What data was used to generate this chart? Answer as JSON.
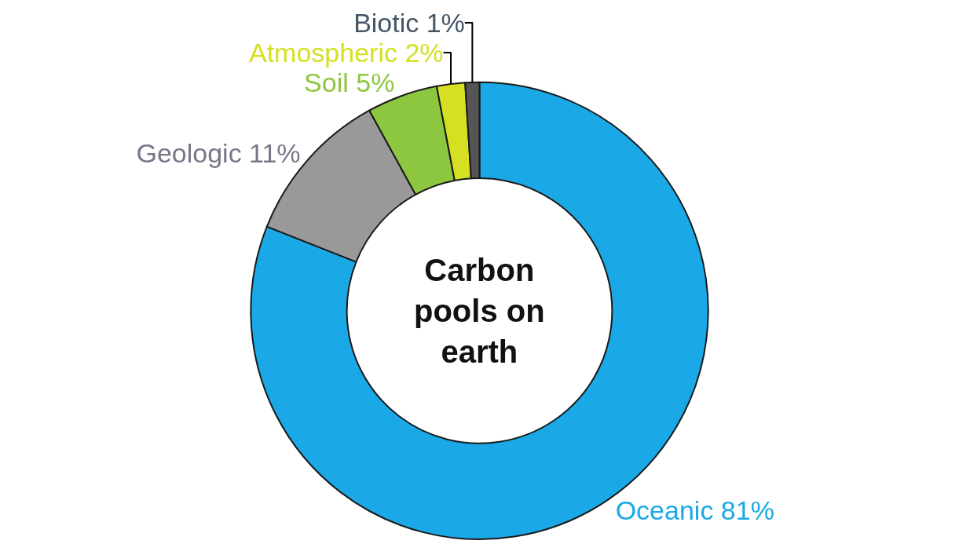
{
  "chart_data": {
    "type": "donut",
    "title": "Carbon pools on earth",
    "categories": [
      "Oceanic",
      "Geologic",
      "Soil",
      "Atmospheric",
      "Biotic"
    ],
    "values": [
      81,
      11,
      5,
      2,
      1
    ],
    "value_labels": [
      "81%",
      "11%",
      "5%",
      "2%",
      "1%"
    ],
    "colors": [
      "#1aa9e6",
      "#999999",
      "#8dc63f",
      "#d4e021",
      "#555555"
    ],
    "legend": false
  }
}
